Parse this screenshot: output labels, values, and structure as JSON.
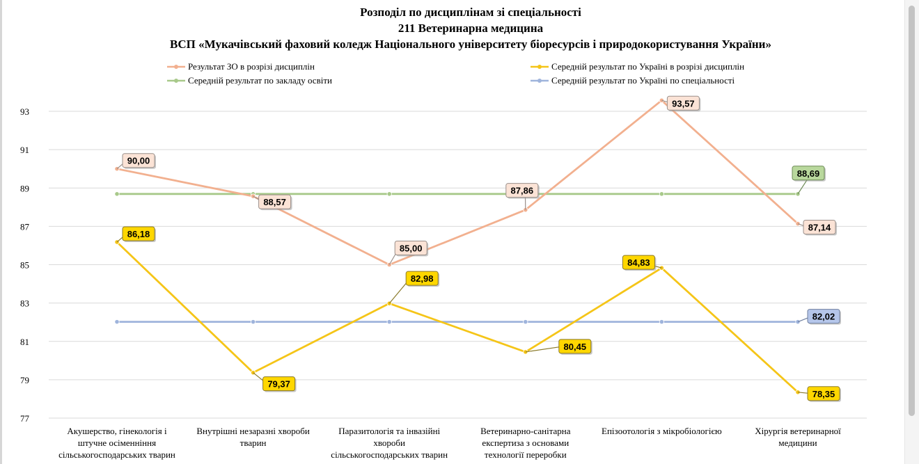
{
  "chart_data": {
    "type": "line",
    "title_lines": [
      "Розподіл по дисциплінам зі спеціальності",
      "211 Ветеринарна медицина",
      "ВСП «Мукачівський фаховий коледж Національного  університету біоресурсів і природокористування України»"
    ],
    "categories": [
      [
        "Акушерство, гінекологія і",
        "штучне осіменніння",
        "сільськогосподарських тварин"
      ],
      [
        "Внутрішні незаразні хвороби",
        "тварин"
      ],
      [
        "Паразитологія та інвазійні",
        "хвороби",
        "сільськогосподарських тварин"
      ],
      [
        "Ветеринарно-санітарна",
        "експертиза з основами",
        "технології переробки"
      ],
      [
        "Епізоотологія з мікробіологією"
      ],
      [
        "Хірургія ветеринарної",
        "медицини"
      ]
    ],
    "ylim": [
      77,
      93.8
    ],
    "yticks": [
      "77",
      "79",
      "81",
      "83",
      "85",
      "87",
      "89",
      "91",
      "93"
    ],
    "grid": true,
    "legend_position": "top",
    "series": [
      {
        "name": "Результат ЗО в розрізі дисциплін",
        "color": "#f2b08f",
        "values": [
          90.0,
          88.57,
          85.0,
          87.86,
          93.57,
          87.14
        ],
        "labels": [
          "90,00",
          "88,57",
          "85,00",
          "87,86",
          "93,57",
          "87,14"
        ],
        "label_style": "peach"
      },
      {
        "name": "Середній результат по Україні в розрізі дисциплін",
        "color": "#f5c518",
        "values": [
          86.18,
          79.37,
          82.98,
          80.45,
          84.83,
          78.35
        ],
        "labels": [
          "86,18",
          "79,37",
          "82,98",
          "80,45",
          "84,83",
          "78,35"
        ],
        "label_style": "gold"
      },
      {
        "name": "Середній результат по закладу освіти",
        "color": "#a8c98a",
        "values": [
          88.69,
          88.69,
          88.69,
          88.69,
          88.69,
          88.69
        ],
        "labels": [
          "",
          "",
          "",
          "",
          "",
          "88,69"
        ],
        "label_style": "green"
      },
      {
        "name": "Середній результат по Україні по спеціальності",
        "color": "#9fb4dc",
        "values": [
          82.02,
          82.02,
          82.02,
          82.02,
          82.02,
          82.02
        ],
        "labels": [
          "",
          "",
          "",
          "",
          "",
          "82,02"
        ],
        "label_style": "blue"
      }
    ]
  }
}
